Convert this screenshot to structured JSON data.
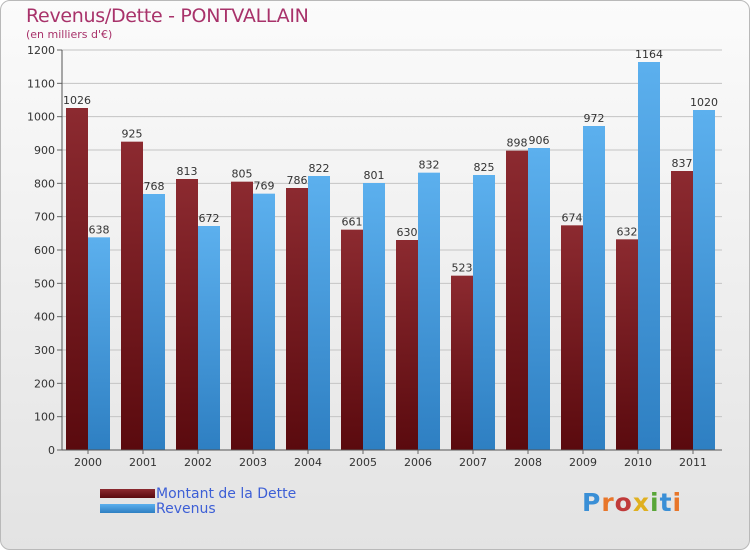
{
  "title": "Revenus/Dette - PONTVALLAIN",
  "subtitle": "(en milliers d'€)",
  "chart_data": {
    "type": "bar",
    "categories": [
      "2000",
      "2001",
      "2002",
      "2003",
      "2004",
      "2005",
      "2006",
      "2007",
      "2008",
      "2009",
      "2010",
      "2011"
    ],
    "series": [
      {
        "name": "Montant de la Dette",
        "values": [
          1026,
          925,
          813,
          805,
          786,
          661,
          630,
          523,
          898,
          674,
          632,
          837
        ],
        "color": "#7a1c22"
      },
      {
        "name": "Revenus",
        "values": [
          638,
          768,
          672,
          769,
          822,
          801,
          832,
          825,
          906,
          972,
          1164,
          1020
        ],
        "color": "#4ea3e6"
      }
    ],
    "ylim": [
      0,
      1200
    ],
    "yticks": [
      0,
      100,
      200,
      300,
      400,
      500,
      600,
      700,
      800,
      900,
      1000,
      1100,
      1200
    ],
    "grid": true,
    "legend_position": "bottom-left"
  },
  "logo": {
    "letters": [
      "P",
      "r",
      "o",
      "x",
      "i",
      "t",
      "i"
    ],
    "colors": [
      "#3a8fd6",
      "#e8762a",
      "#c03a3a",
      "#e0b020",
      "#59a638",
      "#3a8fd6",
      "#e8762a"
    ]
  }
}
